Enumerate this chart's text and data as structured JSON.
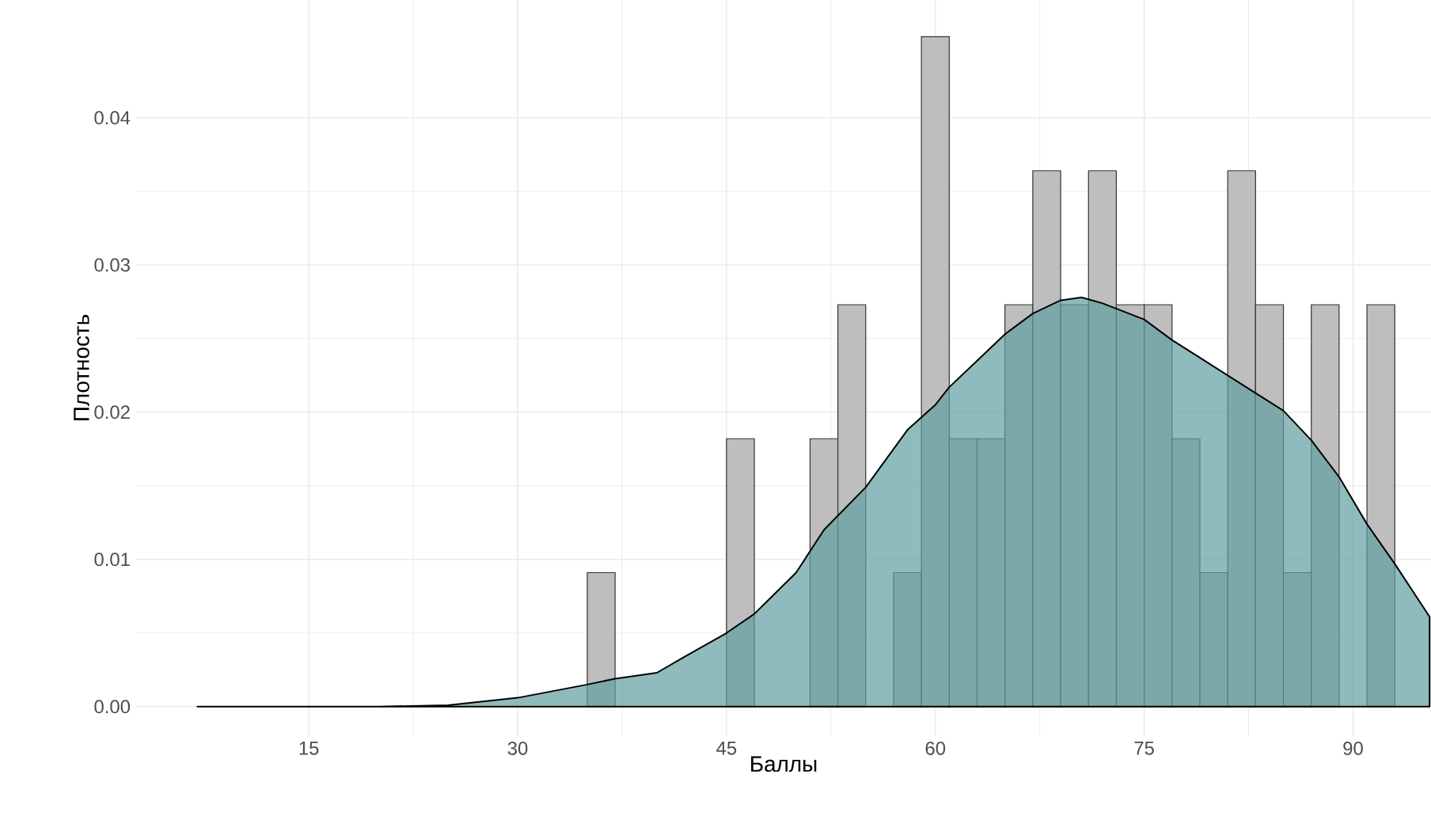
{
  "chart_data": {
    "type": "histogram",
    "xlabel": "Баллы",
    "ylabel": "Плотность",
    "xlim": [
      2.6,
      95.6
    ],
    "ylim": [
      -0.002,
      0.048
    ],
    "xticks": [
      15,
      30,
      45,
      60,
      75,
      90
    ],
    "yticks": [
      {
        "value": 0,
        "label": "0.00"
      },
      {
        "value": 0.01,
        "label": "0.01"
      },
      {
        "value": 0.02,
        "label": "0.02"
      },
      {
        "value": 0.03,
        "label": "0.03"
      },
      {
        "value": 0.04,
        "label": "0.04"
      }
    ],
    "grid": true,
    "series": [
      {
        "color": "#bebebe",
        "bins": [
          35,
          37,
          39,
          41,
          43,
          45,
          47,
          49,
          51,
          53,
          55,
          57,
          59,
          61,
          63,
          65,
          67,
          69,
          71,
          73,
          75,
          77,
          79,
          81,
          83,
          85,
          87,
          89,
          91,
          93
        ],
        "values": [
          0.0091,
          0,
          0,
          0,
          0,
          0.0182,
          0,
          0,
          0.0182,
          0.0273,
          0,
          0.0091,
          0.0455,
          0.0182,
          0.0182,
          0.0273,
          0.0364,
          0.0273,
          0.0364,
          0.0273,
          0.0273,
          0.0182,
          0.0091,
          0.0364,
          0.0273,
          0.0091,
          0.0273,
          0,
          0.0273
        ]
      },
      {
        "type": "area",
        "color": "#5f9ea0",
        "x": [
          7,
          20,
          25,
          30,
          35,
          37,
          40,
          42,
          45,
          47,
          50,
          52,
          55,
          58,
          60,
          61,
          63,
          65,
          67,
          69,
          70.5,
          72,
          75,
          77,
          80,
          83,
          85,
          87,
          89,
          91,
          93,
          95.5
        ],
        "values": [
          0,
          0,
          0.0001,
          0.0006,
          0.0015,
          0.0019,
          0.0023,
          0.0034,
          0.005,
          0.0063,
          0.0091,
          0.012,
          0.0149,
          0.0188,
          0.0205,
          0.0217,
          0.0235,
          0.0253,
          0.0267,
          0.0276,
          0.0278,
          0.0274,
          0.0263,
          0.0249,
          0.0231,
          0.0213,
          0.0201,
          0.0181,
          0.0156,
          0.0124,
          0.0097,
          0.0061
        ]
      }
    ]
  }
}
